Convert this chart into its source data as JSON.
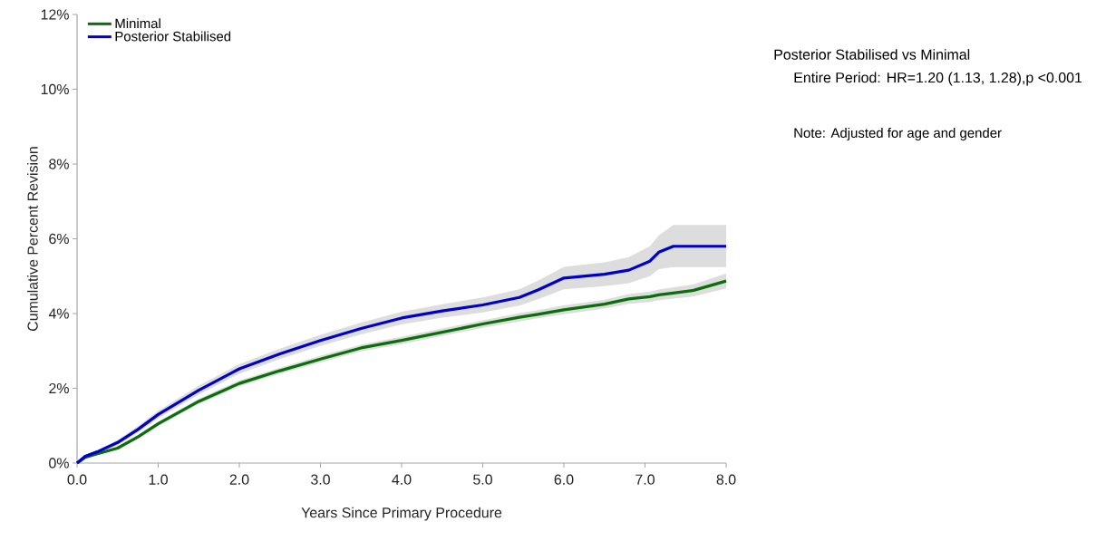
{
  "chart_data": {
    "type": "line",
    "xlabel": "Years Since Primary Procedure",
    "ylabel": "Cumulative Percent Revision",
    "annotations": [
      "Posterior Stabilised vs Minimal",
      "Entire Period: HR=1.20 (1.13, 1.28),p <0.001",
      "Note: Adjusted for age and gender"
    ],
    "x": [
      0,
      0.1,
      0.25,
      0.5,
      0.75,
      1,
      1.5,
      2,
      2.5,
      3,
      3.5,
      4,
      4.5,
      5,
      5.45,
      5.68,
      6,
      6.5,
      6.8,
      7.06,
      7.17,
      7.35,
      7.6,
      8
    ],
    "series": [
      {
        "name": "Minimal",
        "color": "#0a6e0a",
        "values": [
          0,
          0.15,
          0.25,
          0.4,
          0.7,
          1.05,
          1.65,
          2.13,
          2.47,
          2.78,
          3.08,
          3.28,
          3.5,
          3.72,
          3.9,
          3.98,
          4.1,
          4.25,
          4.39,
          4.45,
          4.5,
          4.55,
          4.62,
          4.87
        ],
        "lower": [
          0,
          0.13,
          0.22,
          0.36,
          0.65,
          0.99,
          1.58,
          2.05,
          2.39,
          2.69,
          2.99,
          3.18,
          3.4,
          3.62,
          3.79,
          3.87,
          3.98,
          4.13,
          4.26,
          4.31,
          4.36,
          4.4,
          4.46,
          4.67
        ],
        "upper": [
          0,
          0.17,
          0.28,
          0.44,
          0.75,
          1.11,
          1.72,
          2.21,
          2.55,
          2.87,
          3.17,
          3.38,
          3.6,
          3.82,
          4.01,
          4.09,
          4.22,
          4.37,
          4.52,
          4.59,
          4.64,
          4.7,
          4.78,
          5.07
        ]
      },
      {
        "name": "Posterior Stabilised",
        "color": "#0000cc",
        "values": [
          0,
          0.18,
          0.3,
          0.55,
          0.9,
          1.3,
          1.95,
          2.52,
          2.92,
          3.28,
          3.6,
          3.88,
          4.07,
          4.23,
          4.43,
          4.63,
          4.95,
          5.05,
          5.16,
          5.4,
          5.64,
          5.8,
          5.8,
          5.8
        ],
        "lower": [
          0,
          0.15,
          0.25,
          0.48,
          0.81,
          1.2,
          1.83,
          2.39,
          2.78,
          3.13,
          3.44,
          3.71,
          3.89,
          4.03,
          4.21,
          4.38,
          4.65,
          4.73,
          4.81,
          5.0,
          5.19,
          5.24,
          5.24,
          5.24
        ],
        "upper": [
          0,
          0.21,
          0.35,
          0.62,
          0.99,
          1.4,
          2.07,
          2.65,
          3.06,
          3.43,
          3.76,
          4.05,
          4.25,
          4.43,
          4.65,
          4.88,
          5.25,
          5.37,
          5.51,
          5.8,
          6.09,
          6.37,
          6.37,
          6.37
        ]
      }
    ],
    "xlim": [
      0,
      8
    ],
    "ylim": [
      0,
      12
    ],
    "xticks": [
      {
        "value": 0,
        "label": "0.0"
      },
      {
        "value": 1,
        "label": "1.0"
      },
      {
        "value": 2,
        "label": "2.0"
      },
      {
        "value": 3,
        "label": "3.0"
      },
      {
        "value": 4,
        "label": "4.0"
      },
      {
        "value": 5,
        "label": "5.0"
      },
      {
        "value": 6,
        "label": "6.0"
      },
      {
        "value": 7,
        "label": "7.0"
      },
      {
        "value": 8,
        "label": "8.0"
      }
    ],
    "yticks": [
      {
        "value": 0,
        "label": "0%"
      },
      {
        "value": 2,
        "label": "2%"
      },
      {
        "value": 4,
        "label": "4%"
      },
      {
        "value": 6,
        "label": "6%"
      },
      {
        "value": 8,
        "label": "8%"
      },
      {
        "value": 10,
        "label": "10%"
      },
      {
        "value": 12,
        "label": "12%"
      }
    ],
    "grid": false,
    "legend": "top left",
    "marker": "none",
    "line_style": "solid"
  }
}
